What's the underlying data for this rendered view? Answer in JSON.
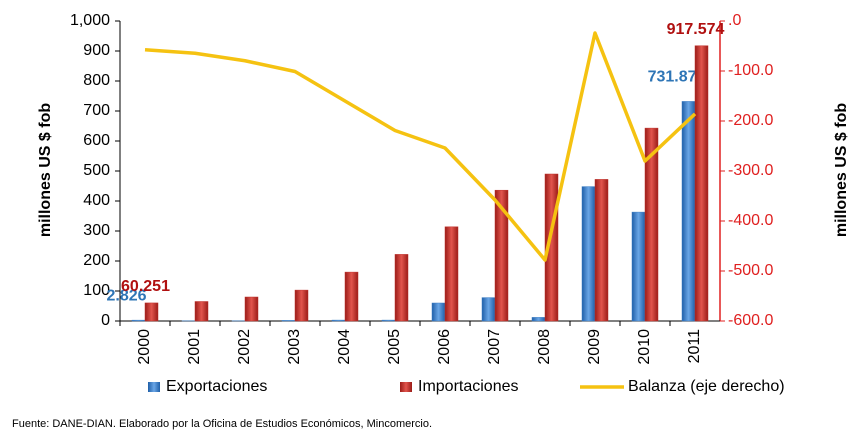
{
  "chart_data": {
    "type": "bar",
    "categories": [
      "2000",
      "2001",
      "2002",
      "2003",
      "2004",
      "2005",
      "2006",
      "2007",
      "2008",
      "2009",
      "2010",
      "2011"
    ],
    "series": [
      {
        "name": "Exportaciones",
        "color": "#3b7dc4",
        "type": "bar",
        "values": [
          2.826,
          0.5,
          0.5,
          2,
          3,
          3,
          60,
          78,
          12,
          448,
          363,
          731.875
        ],
        "value_labels": [
          "2.826",
          null,
          null,
          null,
          null,
          null,
          null,
          null,
          null,
          null,
          null,
          "731.875"
        ],
        "label_color": "#2e75b6"
      },
      {
        "name": "Importaciones",
        "color": "#c0322c",
        "type": "bar",
        "values": [
          60.251,
          65,
          80,
          103,
          163,
          222,
          314,
          436,
          490,
          472,
          643,
          917.574
        ],
        "value_labels": [
          "60.251",
          null,
          null,
          null,
          null,
          null,
          null,
          null,
          null,
          null,
          null,
          "917.574"
        ],
        "label_color": "#b01010"
      },
      {
        "name": "Balanza (eje derecho)",
        "color": "#f5c211",
        "type": "line",
        "axis": "y2",
        "values": [
          -57.4,
          -64.5,
          -79.5,
          -101,
          -160,
          -219,
          -254,
          -358,
          -478,
          -24,
          -280,
          -185.7
        ]
      }
    ],
    "ylabel": "millones US $ fob",
    "y2label": "millones US $ fob",
    "ylim": [
      0,
      1000
    ],
    "yticks": [
      0,
      100,
      200,
      300,
      400,
      500,
      600,
      700,
      800,
      900,
      {
        "value": 1000,
        "label": "1,000"
      }
    ],
    "y2lim": [
      -600,
      0
    ],
    "y2ticks": [
      {
        "value": 0,
        "label": ".0"
      },
      {
        "value": -100,
        "label": "-100.0"
      },
      {
        "value": -200,
        "label": "-200.0"
      },
      {
        "value": -300,
        "label": "-300.0"
      },
      {
        "value": -400,
        "label": "-400.0"
      },
      {
        "value": -500,
        "label": "-500.0"
      },
      {
        "value": -600,
        "label": "-600.0"
      }
    ],
    "y2_color": "#e02020",
    "legend": "bottom",
    "source": "Fuente: DANE-DIAN. Elaborado por la Oficina de Estudios Económicos, Mincomercio."
  }
}
